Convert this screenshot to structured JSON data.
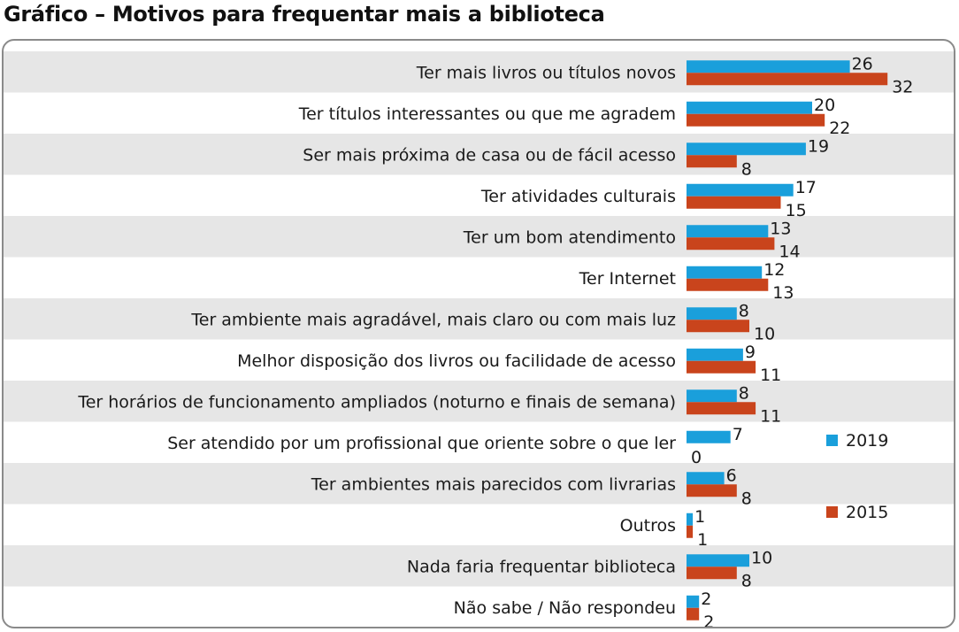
{
  "chart_data": {
    "type": "bar",
    "orientation": "horizontal",
    "title": "Gráfico – Motivos para frequentar mais a biblioteca",
    "categories": [
      "Ter mais livros ou títulos novos",
      "Ter títulos interessantes ou que me agradem",
      "Ser mais próxima de casa ou de fácil acesso",
      "Ter atividades culturais",
      "Ter um bom atendimento",
      "Ter Internet",
      "Ter ambiente mais agradável, mais claro ou com mais luz",
      "Melhor disposição dos livros ou facilidade de acesso",
      "Ter horários de funcionamento ampliados (noturno e finais de semana)",
      "Ser atendido por um profissional que oriente sobre o que ler",
      "Ter ambientes mais parecidos com livrarias",
      "Outros",
      "Nada faria frequentar biblioteca",
      "Não sabe / Não respondeu"
    ],
    "series": [
      {
        "name": "2019",
        "color": "#1a9fdb",
        "values": [
          26,
          20,
          19,
          17,
          13,
          12,
          8,
          9,
          8,
          7,
          6,
          1,
          10,
          2
        ]
      },
      {
        "name": "2015",
        "color": "#c9441c",
        "values": [
          32,
          22,
          8,
          15,
          14,
          13,
          10,
          11,
          11,
          0,
          8,
          1,
          8,
          2
        ]
      }
    ],
    "legend_position": "right",
    "band_color": "#e6e6e6"
  }
}
